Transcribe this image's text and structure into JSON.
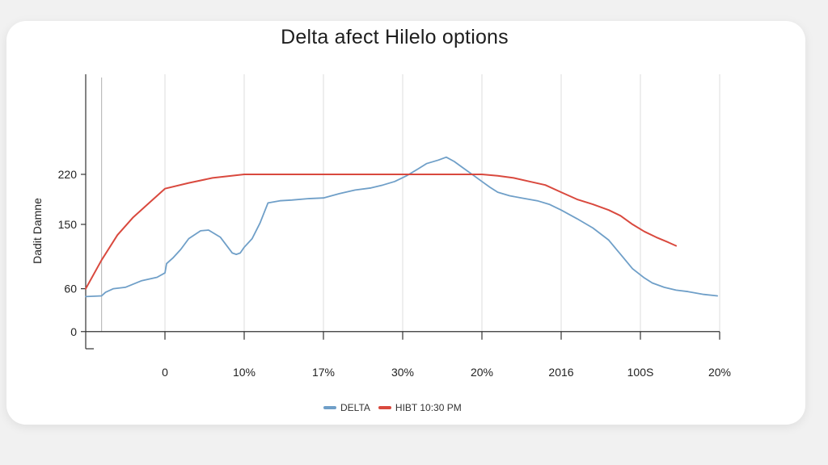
{
  "chart_data": {
    "type": "line",
    "title": "Delta afect Hilelo options",
    "ylabel": "Dadit Damne",
    "xlabel": "",
    "x_tick_labels": [
      "0",
      "10%",
      "17%",
      "30%",
      "20%",
      "2016",
      "100S",
      "20%"
    ],
    "y_ticks": [
      {
        "value": 0,
        "label": "0"
      },
      {
        "value": 60,
        "label": "60"
      },
      {
        "value": 150,
        "label": "150"
      },
      {
        "value": 220,
        "label": "220"
      }
    ],
    "ylim": [
      -24,
      360
    ],
    "xlim": [
      -1,
      7
    ],
    "grid": {
      "vertical": true,
      "horizontal": false
    },
    "legend_position": "bottom-center",
    "colors": {
      "delta": "#6f9fc8",
      "hibt": "#d9493e",
      "grid": "#dddddd",
      "axis": "#333333"
    },
    "series": [
      {
        "name": "DELTA",
        "color": "#6f9fc8",
        "x": [
          -1,
          -0.8,
          -0.75,
          -0.65,
          -0.5,
          -0.3,
          -0.1,
          0,
          0.02,
          0.1,
          0.2,
          0.3,
          0.45,
          0.55,
          0.7,
          0.85,
          0.9,
          0.95,
          1.0,
          1.1,
          1.2,
          1.3,
          1.45,
          1.6,
          1.8,
          2.0,
          2.2,
          2.4,
          2.6,
          2.75,
          2.9,
          3.05,
          3.2,
          3.3,
          3.45,
          3.55,
          3.65,
          3.75,
          3.9,
          4.0,
          4.1,
          4.2,
          4.35,
          4.5,
          4.7,
          4.85,
          5.0,
          5.2,
          5.4,
          5.6,
          5.75,
          5.9,
          6.05,
          6.15,
          6.3,
          6.45,
          6.6,
          6.8,
          6.97
        ],
        "values": [
          49,
          50,
          55,
          60,
          62,
          71,
          76,
          82,
          95,
          103,
          115,
          130,
          141,
          142,
          132,
          110,
          108,
          110,
          118,
          130,
          152,
          180,
          183,
          184,
          186,
          187,
          193,
          198,
          201,
          205,
          210,
          218,
          228,
          235,
          240,
          244,
          238,
          230,
          218,
          210,
          202,
          195,
          190,
          187,
          183,
          178,
          170,
          158,
          145,
          128,
          108,
          88,
          75,
          68,
          62,
          58,
          56,
          52,
          50
        ]
      },
      {
        "name": "HIBT 10:30 PM",
        "color": "#d9493e",
        "x": [
          -1,
          -0.8,
          -0.6,
          -0.4,
          -0.2,
          0,
          0.3,
          0.6,
          1.0,
          1.5,
          2.0,
          2.5,
          3.0,
          3.5,
          4.0,
          4.2,
          4.4,
          4.6,
          4.8,
          5.0,
          5.2,
          5.4,
          5.6,
          5.75,
          5.9,
          6.05,
          6.2,
          6.35,
          6.45
        ],
        "values": [
          60,
          100,
          135,
          160,
          180,
          200,
          208,
          215,
          220,
          220,
          220,
          220,
          220,
          220,
          220,
          218,
          215,
          210,
          205,
          195,
          185,
          178,
          170,
          162,
          150,
          140,
          132,
          125,
          120
        ]
      }
    ]
  }
}
